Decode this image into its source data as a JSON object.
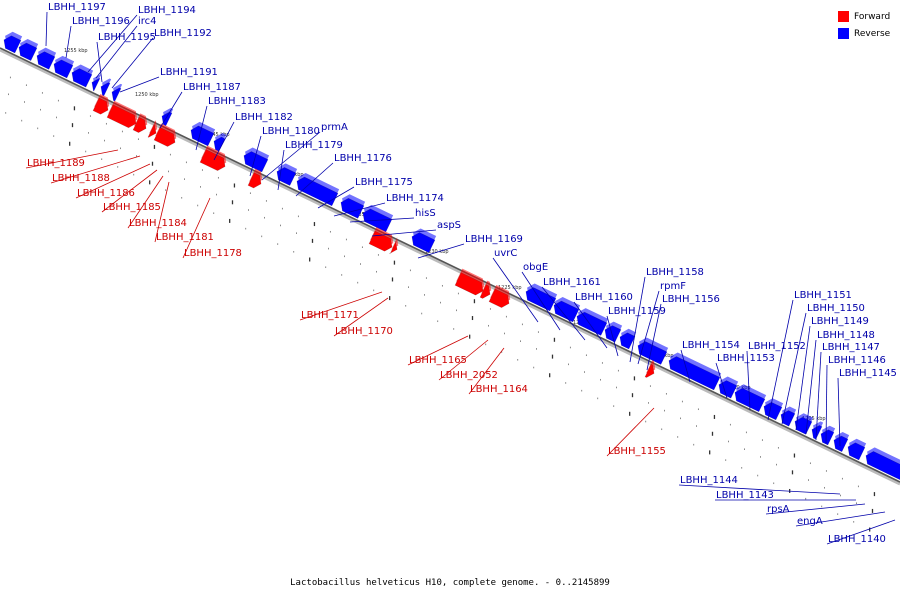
{
  "caption": "Lactobacillus helveticus H10, complete genome. - 0..2145899",
  "legend": [
    {
      "label": "Forward",
      "color": "#ff0000"
    },
    {
      "label": "Reverse",
      "color": "#0000ff"
    }
  ],
  "colors": {
    "forward": "#ff0000",
    "reverse": "#0000ff",
    "forward_label": "#cc0000",
    "reverse_label": "#0000aa"
  },
  "scale_labels": [
    "1255 kbp",
    "1250 kbp",
    "1245 kbp",
    "1240 kbp",
    "1235 kbp",
    "1230 kbp",
    "1225 kbp",
    "1220 kbp",
    "1215 kbp",
    "1210 kbp",
    "1205 kbp"
  ],
  "reverse_genes": [
    "LBHH_1197",
    "LBHH_1196",
    "LBHH_1194",
    "irc4",
    "LBHH_1195",
    "LBHH_1192",
    "LBHH_1191",
    "LBHH_1187",
    "LBHH_1183",
    "LBHH_1182",
    "LBHH_1180",
    "prmA",
    "LBHH_1179",
    "LBHH_1176",
    "LBHH_1175",
    "LBHH_1174",
    "hisS",
    "aspS",
    "LBHH_1169",
    "uvrC",
    "obgE",
    "LBHH_1161",
    "LBHH_1160",
    "LBHH_1159",
    "LBHH_1158",
    "rpmF",
    "LBHH_1156",
    "LBHH_1154",
    "LBHH_1153",
    "LBHH_1152",
    "LBHH_1151",
    "LBHH_1150",
    "LBHH_1149",
    "LBHH_1148",
    "LBHH_1147",
    "LBHH_1146",
    "LBHH_1145",
    "LBHH_1144",
    "LBHH_1143",
    "rpsA",
    "engA",
    "LBHH_1140"
  ],
  "forward_genes": [
    "LBHH_1189",
    "LBHH_1188",
    "LBHH_1186",
    "LBHH_1185",
    "LBHH_1184",
    "LBHH_1181",
    "LBHH_1178",
    "LBHH_1171",
    "LBHH_1170",
    "LBHH_1165",
    "LBHH_2052",
    "LBHH_1164",
    "LBHH_1155"
  ]
}
